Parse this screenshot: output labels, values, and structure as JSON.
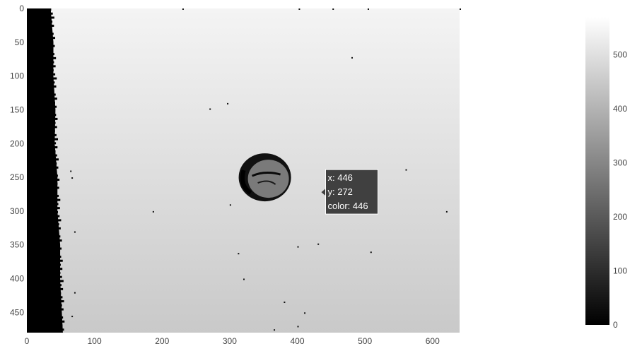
{
  "chart_data": {
    "type": "heatmap",
    "description_of_content": "",
    "colorscale": [
      "#000000",
      "#ffffff"
    ],
    "zmin": 0,
    "zmax": 570,
    "x_range": [
      0,
      640
    ],
    "y_range": [
      480,
      0
    ],
    "x_ticks": [
      0,
      100,
      200,
      300,
      400,
      500,
      600
    ],
    "x_tick_labels": [
      "0",
      "100",
      "200",
      "300",
      "400",
      "500",
      "600"
    ],
    "y_ticks": [
      0,
      50,
      100,
      150,
      200,
      250,
      300,
      350,
      400,
      450
    ],
    "y_tick_labels": [
      "0",
      "50",
      "100",
      "150",
      "200",
      "250",
      "300",
      "350",
      "400",
      "450"
    ],
    "colorbar_ticks": [
      0,
      100,
      200,
      300,
      400,
      500
    ],
    "colorbar_tick_labels": [
      "0",
      "100",
      "200",
      "300",
      "400",
      "500"
    ],
    "field": {
      "gradient_top_value": 560,
      "gradient_bottom_value": 455,
      "left_black_band_edge_x": [
        36,
        38,
        40,
        41,
        42,
        44,
        46,
        48,
        50,
        52
      ],
      "left_black_band_edge_y": [
        0,
        50,
        100,
        150,
        200,
        250,
        300,
        350,
        400,
        480
      ],
      "blob_center": [
        352,
        250
      ],
      "blob_value": 330
    },
    "hover": {
      "x": 446,
      "y": 272,
      "color": 446,
      "lines": [
        "x: 446",
        "y: 272",
        "color: 446"
      ]
    }
  }
}
